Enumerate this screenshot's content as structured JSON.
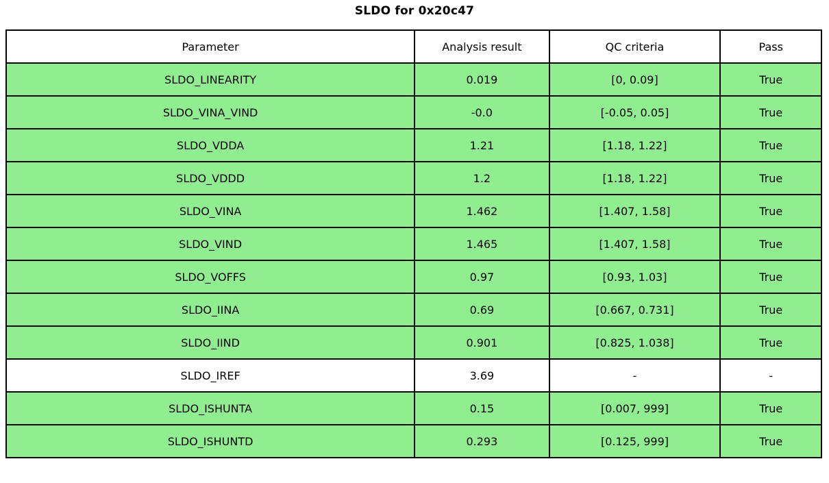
{
  "title": "SLDO for 0x20c47",
  "colors": {
    "pass_row_bg": "#90EE90",
    "neutral_row_bg": "#FFFFFF",
    "border": "#000000",
    "text": "#000000"
  },
  "table": {
    "headers": {
      "parameter": "Parameter",
      "result": "Analysis result",
      "criteria": "QC criteria",
      "pass": "Pass"
    },
    "rows": [
      {
        "parameter": "SLDO_LINEARITY",
        "result": "0.019",
        "criteria": "[0, 0.09]",
        "pass": "True",
        "highlight": true
      },
      {
        "parameter": "SLDO_VINA_VIND",
        "result": "-0.0",
        "criteria": "[-0.05, 0.05]",
        "pass": "True",
        "highlight": true
      },
      {
        "parameter": "SLDO_VDDA",
        "result": "1.21",
        "criteria": "[1.18, 1.22]",
        "pass": "True",
        "highlight": true
      },
      {
        "parameter": "SLDO_VDDD",
        "result": "1.2",
        "criteria": "[1.18, 1.22]",
        "pass": "True",
        "highlight": true
      },
      {
        "parameter": "SLDO_VINA",
        "result": "1.462",
        "criteria": "[1.407, 1.58]",
        "pass": "True",
        "highlight": true
      },
      {
        "parameter": "SLDO_VIND",
        "result": "1.465",
        "criteria": "[1.407, 1.58]",
        "pass": "True",
        "highlight": true
      },
      {
        "parameter": "SLDO_VOFFS",
        "result": "0.97",
        "criteria": "[0.93, 1.03]",
        "pass": "True",
        "highlight": true
      },
      {
        "parameter": "SLDO_IINA",
        "result": "0.69",
        "criteria": "[0.667, 0.731]",
        "pass": "True",
        "highlight": true
      },
      {
        "parameter": "SLDO_IIND",
        "result": "0.901",
        "criteria": "[0.825, 1.038]",
        "pass": "True",
        "highlight": true
      },
      {
        "parameter": "SLDO_IREF",
        "result": "3.69",
        "criteria": "-",
        "pass": "-",
        "highlight": false
      },
      {
        "parameter": "SLDO_ISHUNTA",
        "result": "0.15",
        "criteria": "[0.007, 999]",
        "pass": "True",
        "highlight": true
      },
      {
        "parameter": "SLDO_ISHUNTD",
        "result": "0.293",
        "criteria": "[0.125, 999]",
        "pass": "True",
        "highlight": true
      }
    ]
  }
}
